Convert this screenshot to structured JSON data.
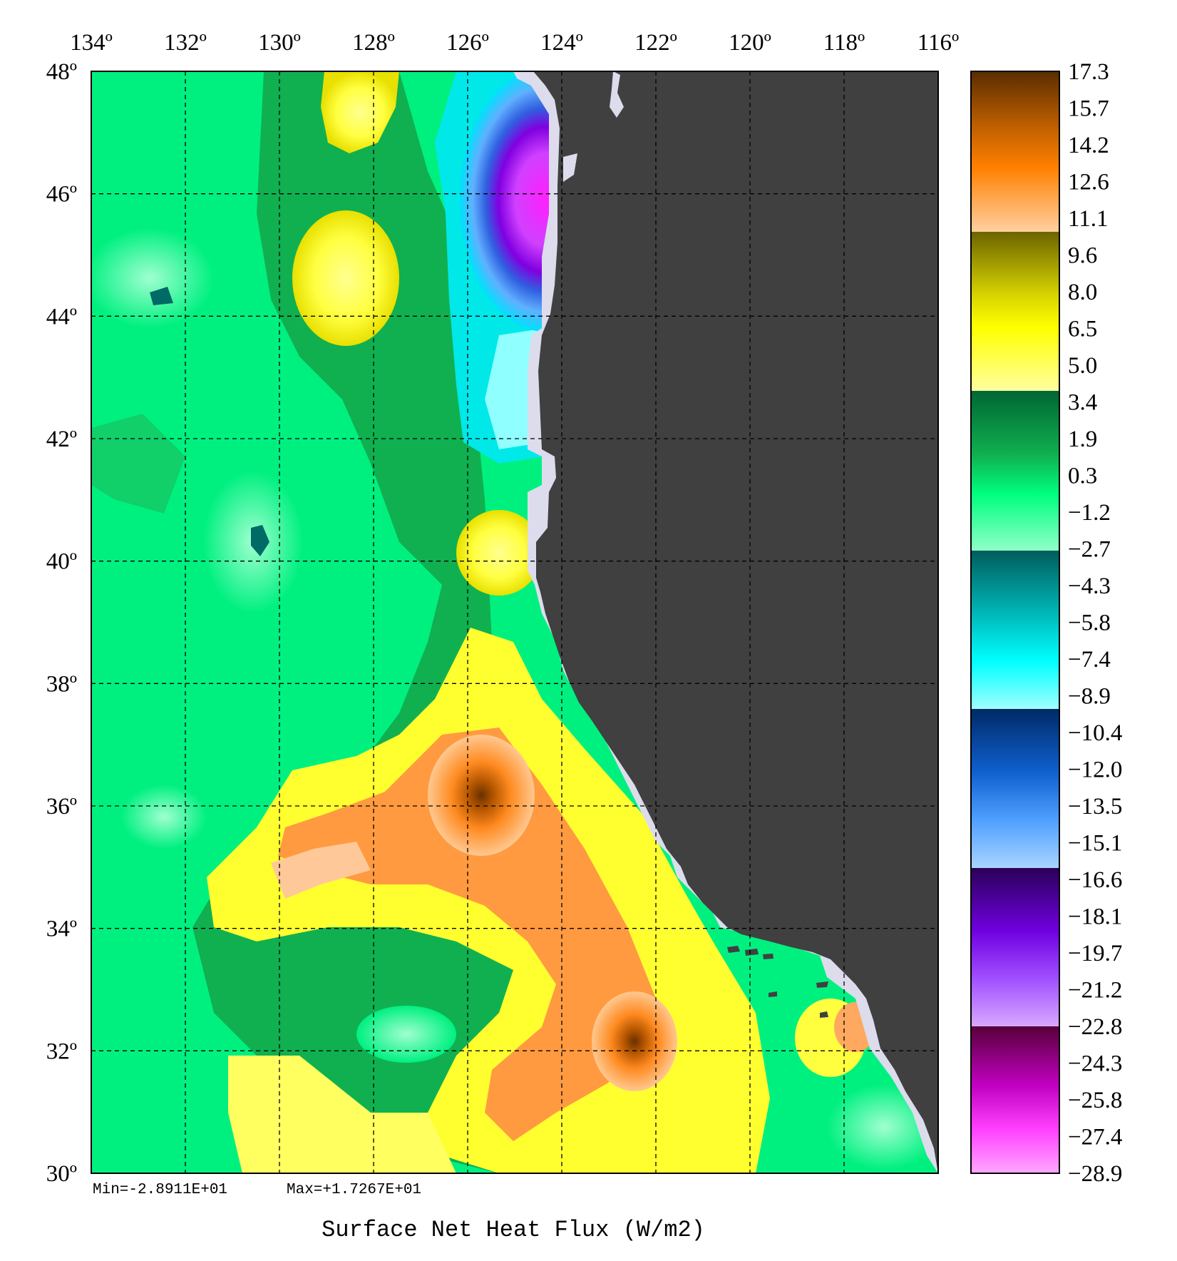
{
  "map": {
    "title": "Surface Net Heat Flux (W/m2)",
    "min_label": "Min=-2.8911E+01",
    "max_label": "Max=+1.7267E+01",
    "projection": "lat-lon",
    "lon_range": [
      -134,
      -116
    ],
    "lat_range": [
      30,
      48
    ],
    "lon_ticks": [
      {
        "value": -134,
        "label": "134º"
      },
      {
        "value": -132,
        "label": "132º"
      },
      {
        "value": -130,
        "label": "130º"
      },
      {
        "value": -128,
        "label": "128º"
      },
      {
        "value": -126,
        "label": "126º"
      },
      {
        "value": -124,
        "label": "124º"
      },
      {
        "value": -122,
        "label": "122º"
      },
      {
        "value": -120,
        "label": "120º"
      },
      {
        "value": -118,
        "label": "118º"
      },
      {
        "value": -116,
        "label": "116º"
      }
    ],
    "lat_ticks": [
      {
        "value": 48,
        "label": "48º"
      },
      {
        "value": 46,
        "label": "46º"
      },
      {
        "value": 44,
        "label": "44º"
      },
      {
        "value": 42,
        "label": "42º"
      },
      {
        "value": 40,
        "label": "40º"
      },
      {
        "value": 38,
        "label": "38º"
      },
      {
        "value": 36,
        "label": "36º"
      },
      {
        "value": 34,
        "label": "34º"
      },
      {
        "value": 32,
        "label": "32º"
      },
      {
        "value": 30,
        "label": "30º"
      }
    ],
    "gridlines": "dashed",
    "land_color": "#404040",
    "coast_color": "#dcdcec",
    "features": [
      {
        "name": "cooling-max-magenta",
        "lon": -124.9,
        "lat": 46.3,
        "value": -28.9
      },
      {
        "name": "cyan-tongue",
        "lon": -125.4,
        "lat": 43.2,
        "value": -7.0
      },
      {
        "name": "warm-core-southern",
        "lon": -125.9,
        "lat": 36.6,
        "value": 17.3
      },
      {
        "name": "warm-core-southern-2",
        "lon": -122.4,
        "lat": 32.3,
        "value": 14.0
      },
      {
        "name": "yellow-patch-north",
        "lon": -128.4,
        "lat": 47.2,
        "value": 6.0
      },
      {
        "name": "yellow-patch-45N",
        "lon": -128.7,
        "lat": 45.1,
        "value": 6.0
      },
      {
        "name": "yellow-patch-41N",
        "lon": -125.5,
        "lat": 40.8,
        "value": 6.0
      },
      {
        "name": "teal-spot-44N",
        "lon": -132.5,
        "lat": 44.7,
        "value": -3.0
      },
      {
        "name": "teal-spot-41N",
        "lon": -130.4,
        "lat": 40.9,
        "value": -3.0
      },
      {
        "name": "socal-warm-spot",
        "lon": -117.6,
        "lat": 32.7,
        "value": 12.0
      }
    ]
  },
  "colorbar": {
    "labels": [
      "17.3",
      "15.7",
      "14.2",
      "12.6",
      "11.1",
      "9.6",
      "8.0",
      "6.5",
      "5.0",
      "3.4",
      "1.9",
      "0.3",
      "−1.2",
      "−2.7",
      "−4.3",
      "−5.8",
      "−7.4",
      "−8.9",
      "−10.4",
      "−12.0",
      "−13.5",
      "−15.1",
      "−16.6",
      "−18.1",
      "−19.7",
      "−21.2",
      "−22.8",
      "−24.3",
      "−25.8",
      "−27.4",
      "−28.9"
    ],
    "values": [
      17.3,
      15.7,
      14.2,
      12.6,
      11.1,
      9.6,
      8.0,
      6.5,
      5.0,
      3.4,
      1.9,
      0.3,
      -1.2,
      -2.7,
      -4.3,
      -5.8,
      -7.4,
      -8.9,
      -10.4,
      -12.0,
      -13.5,
      -15.1,
      -16.6,
      -18.1,
      -19.7,
      -21.2,
      -22.8,
      -24.3,
      -25.8,
      -27.4,
      -28.9
    ],
    "color_groups": [
      {
        "from": 17.3,
        "to": 11.1,
        "colors": [
          "#5a2d00",
          "#8b4500",
          "#c06000",
          "#ff8000",
          "#ffb070",
          "#ffd0a0"
        ]
      },
      {
        "from": 11.1,
        "to": 5.0,
        "colors": [
          "#6b6400",
          "#a8a000",
          "#e0e000",
          "#ffff00",
          "#ffff90"
        ]
      },
      {
        "from": 5.0,
        "to": -2.7,
        "colors": [
          "#006633",
          "#10a050",
          "#00ff80",
          "#80ffc0"
        ]
      },
      {
        "from": -2.7,
        "to": -8.9,
        "colors": [
          "#006060",
          "#00b0b0",
          "#00ffff",
          "#90ffff"
        ]
      },
      {
        "from": -8.9,
        "to": -16.6,
        "colors": [
          "#003070",
          "#1060d0",
          "#50a0ff",
          "#a0d0ff"
        ]
      },
      {
        "from": -16.6,
        "to": -22.8,
        "colors": [
          "#300060",
          "#7000e0",
          "#a050ff",
          "#d0a0ff"
        ]
      },
      {
        "from": -22.8,
        "to": -28.9,
        "colors": [
          "#600040",
          "#c000c0",
          "#ff40ff",
          "#ffa0ff"
        ]
      }
    ]
  }
}
